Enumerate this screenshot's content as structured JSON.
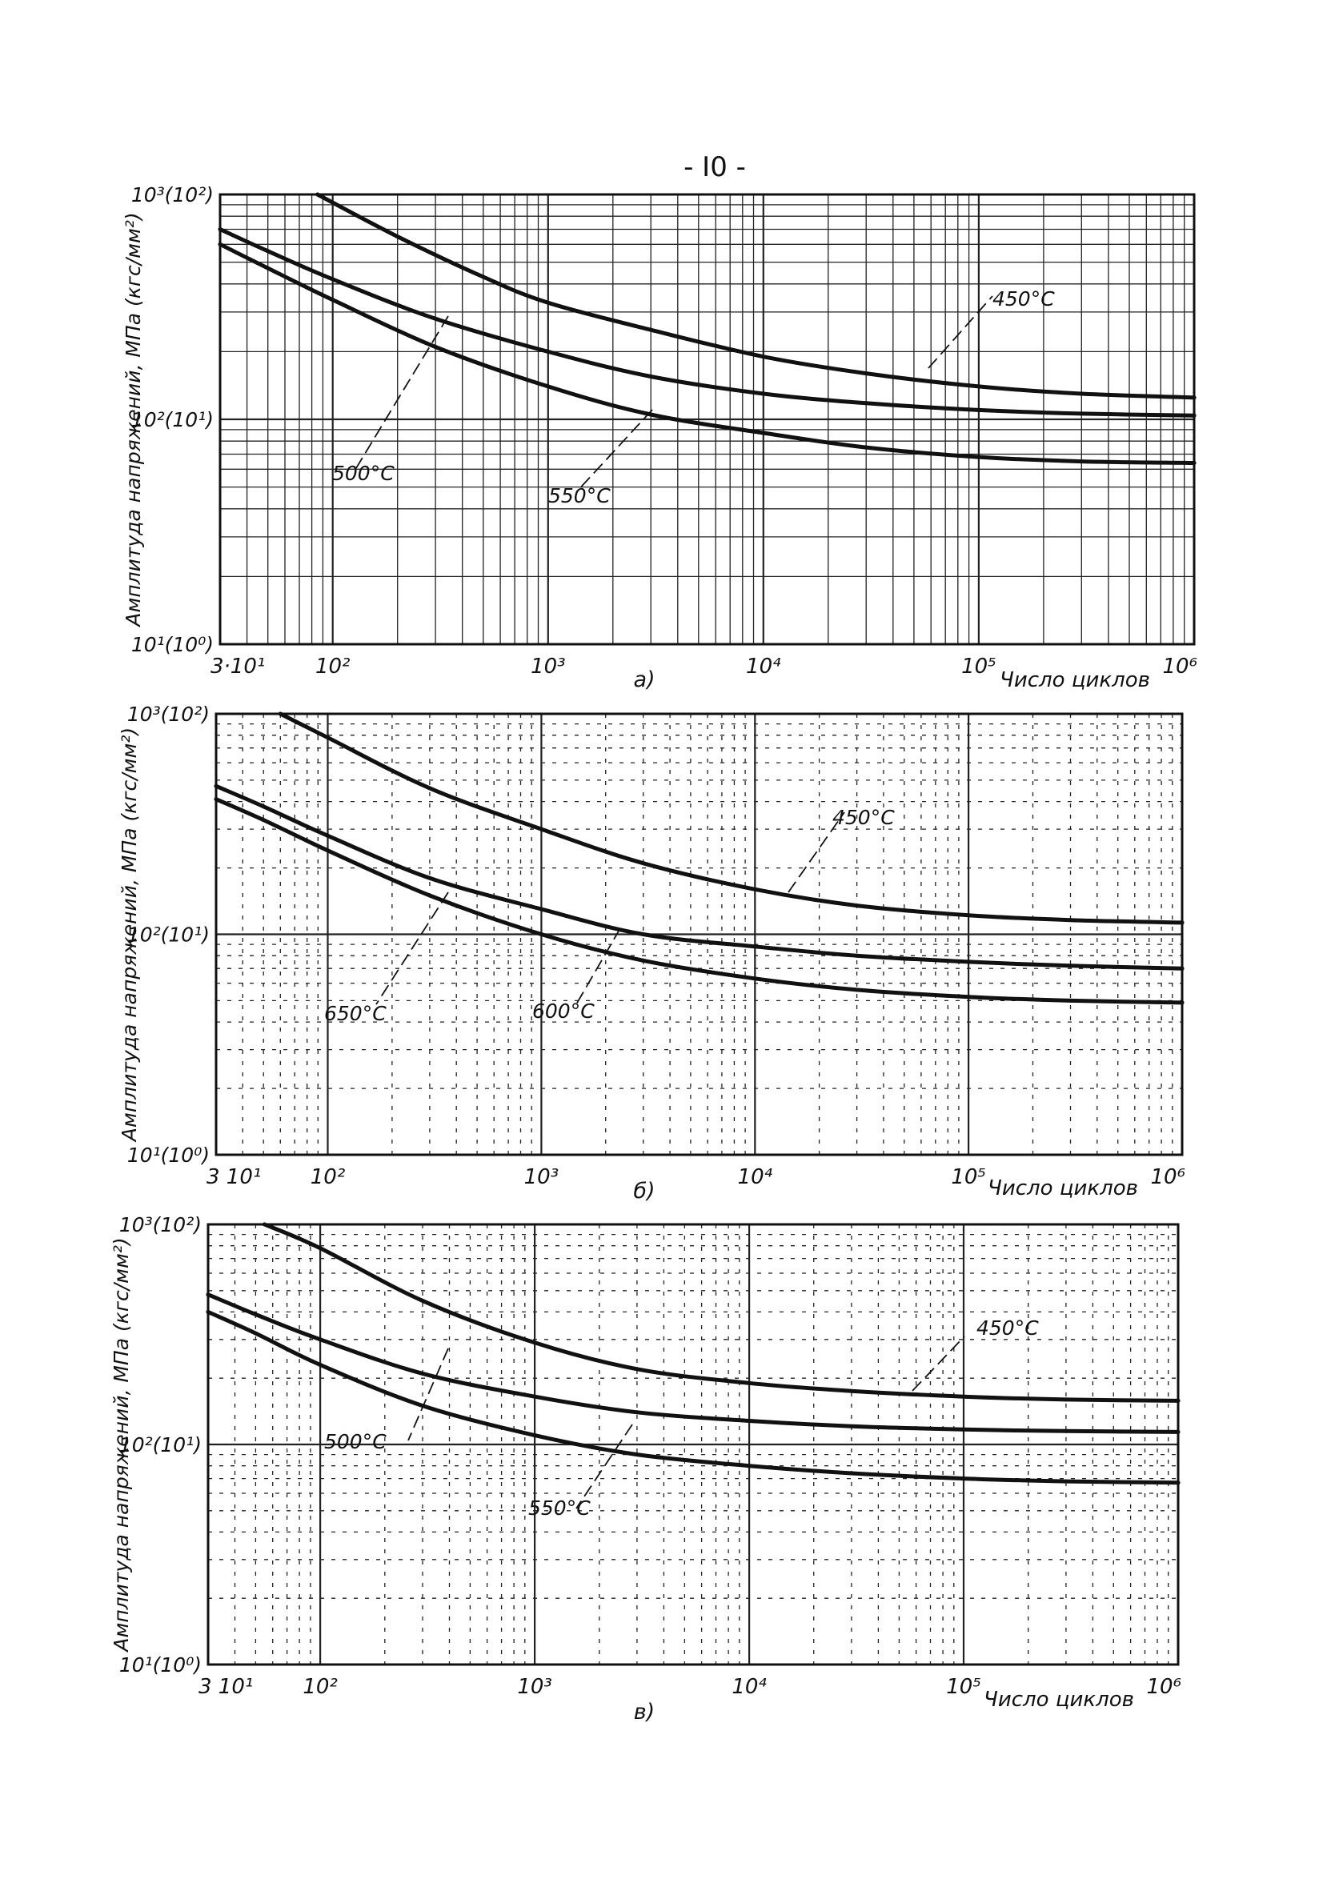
{
  "page_number": "- I0 -",
  "chart_data": [
    {
      "type": "line",
      "panel_label": "а)",
      "xlabel": "Число циклов",
      "ylabel": "Амплитуда напряжений, МПа (кгс/мм²)",
      "x_scale": "log",
      "y_scale": "log",
      "xlim": [
        30,
        1000000
      ],
      "ylim": [
        10,
        1000
      ],
      "x_tick_labels": [
        "3·10¹",
        "10²",
        "10³",
        "10⁴",
        "10⁵",
        "10⁶"
      ],
      "y_tick_labels": [
        "10³(10²)",
        "10²(10¹)",
        "10¹(10⁰)"
      ],
      "grid": true,
      "series": [
        {
          "name": "450°C",
          "x": [
            85,
            200,
            500,
            1000,
            3000,
            10000,
            30000,
            100000,
            300000,
            1000000
          ],
          "y": [
            1000,
            650,
            430,
            330,
            250,
            190,
            160,
            140,
            130,
            125
          ]
        },
        {
          "name": "500°C",
          "x": [
            30,
            50,
            100,
            300,
            1000,
            3000,
            10000,
            30000,
            100000,
            300000,
            1000000
          ],
          "y": [
            700,
            560,
            420,
            280,
            200,
            155,
            130,
            118,
            110,
            106,
            104
          ]
        },
        {
          "name": "550°C",
          "x": [
            30,
            50,
            100,
            300,
            1000,
            3000,
            10000,
            30000,
            100000,
            300000,
            1000000
          ],
          "y": [
            600,
            470,
            340,
            210,
            140,
            105,
            87,
            75,
            68,
            65,
            64
          ]
        }
      ]
    },
    {
      "type": "line",
      "panel_label": "б)",
      "xlabel": "Число циклов",
      "ylabel": "Амплитуда напряжений, МПа (кгс/мм²)",
      "x_scale": "log",
      "y_scale": "log",
      "xlim": [
        30,
        1000000
      ],
      "ylim": [
        10,
        1000
      ],
      "x_tick_labels": [
        "3 10¹",
        "10²",
        "10³",
        "10⁴",
        "10⁵",
        "10⁶"
      ],
      "y_tick_labels": [
        "10³(10²)",
        "10²(10¹)",
        "10¹(10⁰)"
      ],
      "grid": true,
      "series": [
        {
          "name": "450°C",
          "x": [
            60,
            100,
            300,
            1000,
            3000,
            10000,
            30000,
            100000,
            300000,
            1000000
          ],
          "y": [
            1000,
            780,
            460,
            300,
            210,
            160,
            135,
            122,
            116,
            113
          ]
        },
        {
          "name": "600°C",
          "x": [
            30,
            50,
            100,
            300,
            1000,
            3000,
            10000,
            30000,
            100000,
            300000,
            1000000
          ],
          "y": [
            470,
            380,
            280,
            180,
            130,
            100,
            88,
            80,
            75,
            72,
            70
          ]
        },
        {
          "name": "650°C",
          "x": [
            30,
            50,
            100,
            300,
            1000,
            3000,
            10000,
            30000,
            100000,
            300000,
            1000000
          ],
          "y": [
            410,
            330,
            240,
            150,
            100,
            76,
            63,
            56,
            52,
            50,
            49
          ]
        }
      ]
    },
    {
      "type": "line",
      "panel_label": "в)",
      "xlabel": "Число циклов",
      "ylabel": "Амплитуда напряжений, МПа (кгс/мм²)",
      "x_scale": "log",
      "y_scale": "log",
      "xlim": [
        30,
        1000000
      ],
      "ylim": [
        10,
        1000
      ],
      "x_tick_labels": [
        "3 10¹",
        "10²",
        "10³",
        "10⁴",
        "10⁵",
        "10⁶"
      ],
      "y_tick_labels": [
        "10³(10²)",
        "10²(10¹)",
        "10¹(10⁰)"
      ],
      "grid": true,
      "series": [
        {
          "name": "450°C",
          "x": [
            55,
            100,
            300,
            1000,
            3000,
            10000,
            30000,
            100000,
            300000,
            1000000
          ],
          "y": [
            1000,
            780,
            450,
            290,
            220,
            190,
            175,
            165,
            160,
            158
          ]
        },
        {
          "name": "500°C",
          "x": [
            30,
            50,
            100,
            300,
            1000,
            3000,
            10000,
            30000,
            100000,
            300000,
            1000000
          ],
          "y": [
            480,
            390,
            300,
            210,
            165,
            140,
            128,
            121,
            117,
            115,
            114
          ]
        },
        {
          "name": "550°C",
          "x": [
            30,
            50,
            100,
            300,
            1000,
            3000,
            10000,
            30000,
            100000,
            300000,
            1000000
          ],
          "y": [
            400,
            320,
            230,
            150,
            110,
            90,
            80,
            74,
            70,
            68,
            67
          ]
        }
      ]
    }
  ]
}
